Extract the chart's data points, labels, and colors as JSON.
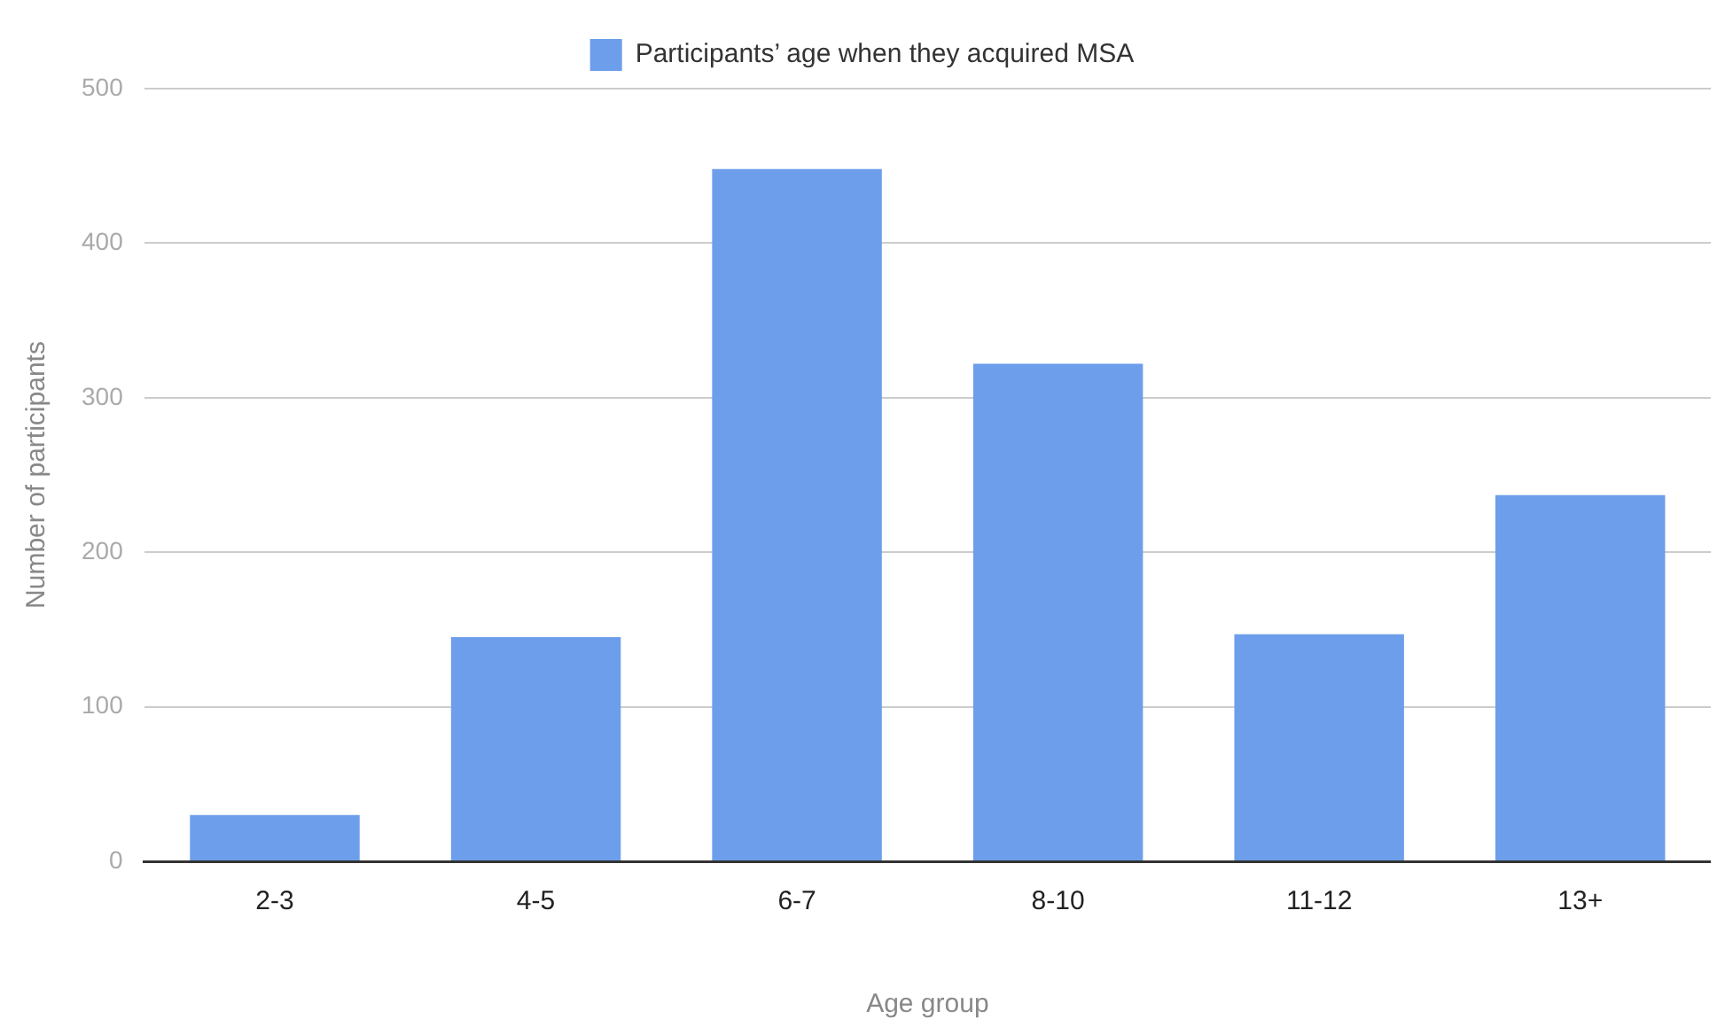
{
  "chart_data": {
    "type": "bar",
    "xlabel": "Age group",
    "ylabel": "Number of participants",
    "categories": [
      "2-3",
      "4-5",
      "6-7",
      "8-10",
      "11-12",
      "13+"
    ],
    "series": [
      {
        "name": "Participants’ age when they acquired MSA",
        "color": "#6d9eeb",
        "values": [
          30,
          145,
          448,
          322,
          147,
          237
        ]
      }
    ],
    "ylim": [
      0,
      500
    ],
    "yticks": [
      0,
      100,
      200,
      300,
      400,
      500
    ],
    "grid": "y",
    "legend": "top"
  }
}
